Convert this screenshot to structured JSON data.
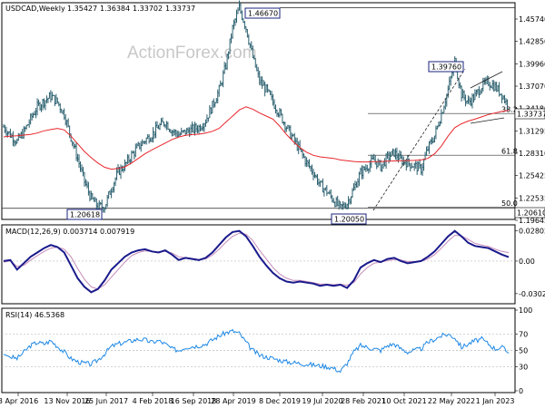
{
  "chart_data": [
    {
      "type": "candlestick",
      "header": {
        "symbol_label": "USDCAD,Weekly",
        "ohlc": [
          "1.35427",
          "1.36384",
          "1.33702",
          "1.33737"
        ]
      },
      "watermark": "ActionForex.com",
      "y_ticks": [
        "1.45740",
        "1.42850",
        "1.39960",
        "1.37070",
        "1.34180",
        "1.31295",
        "1.28310",
        "1.25425",
        "1.22535",
        "1.19645"
      ],
      "ylim": [
        1.193,
        1.472
      ],
      "current_price": "1.33737",
      "price_labels": [
        "1.46670",
        "1.39760",
        "1.20050",
        "1.20618",
        "1.20610"
      ],
      "fib_labels": [
        "38.2",
        "61.8",
        "50.0"
      ],
      "fib_levels": [
        1.3293,
        1.2752,
        1.2078
      ],
      "closes": [
        1.312,
        1.3018,
        1.293,
        1.3055,
        1.322,
        1.338,
        1.3455,
        1.352,
        1.344,
        1.3285,
        1.2985,
        1.2705,
        1.241,
        1.219,
        1.2082,
        1.2085,
        1.2325,
        1.2535,
        1.262,
        1.2752,
        1.286,
        1.2948,
        1.3018,
        1.312,
        1.3185,
        1.3068,
        1.302,
        1.3055,
        1.3085,
        1.3115,
        1.3205,
        1.3395,
        1.3595,
        1.392,
        1.4402,
        1.4667,
        1.4405,
        1.402,
        1.3715,
        1.36,
        1.344,
        1.3285,
        1.312,
        1.2965,
        1.281,
        1.2655,
        1.253,
        1.2362,
        1.2282,
        1.2168,
        1.2065,
        1.2128,
        1.2315,
        1.252,
        1.2608,
        1.269,
        1.2605,
        1.272,
        1.2785,
        1.269,
        1.2652,
        1.2615,
        1.257,
        1.284,
        1.3005,
        1.329,
        1.36,
        1.3976,
        1.354,
        1.3438,
        1.352,
        1.365,
        1.37,
        1.364,
        1.354,
        1.3374
      ],
      "ma_values": [
        1.299,
        1.3,
        1.3005,
        1.3013,
        1.3023,
        1.304,
        1.3068,
        1.3085,
        1.31,
        1.308,
        1.3,
        1.29,
        1.28,
        1.272,
        1.265,
        1.2595,
        1.257,
        1.258,
        1.26,
        1.265,
        1.271,
        1.277,
        1.282,
        1.2865,
        1.291,
        1.2955,
        1.2988,
        1.301,
        1.302,
        1.3025,
        1.304,
        1.3063,
        1.31,
        1.318,
        1.326,
        1.334,
        1.338,
        1.335,
        1.33,
        1.326,
        1.322,
        1.313,
        1.302,
        1.293,
        1.285,
        1.279,
        1.275,
        1.273,
        1.272,
        1.271,
        1.269,
        1.268,
        1.267,
        1.2665,
        1.2665,
        1.2668,
        1.267,
        1.2675,
        1.2678,
        1.268,
        1.2682,
        1.2685,
        1.269,
        1.271,
        1.277,
        1.287,
        1.3,
        1.311,
        1.316,
        1.3195,
        1.322,
        1.325,
        1.328,
        1.33,
        1.332,
        1.3335
      ],
      "x_tick_labels": [
        "3 Apr 2016",
        "13 Nov 2016",
        "25 Jun 2017",
        "4 Feb 2018",
        "16 Sep 2018",
        "28 Apr 2019",
        "8 Dec 2019",
        "19 Jul 2020",
        "28 Feb 2021",
        "10 Oct 2021",
        "22 May 2022",
        "1 Jan 2023"
      ]
    },
    {
      "type": "line",
      "title": "MACD(12,26,9) 0.003714 0.007919",
      "y_ticks": [
        "0.028028",
        "0.00",
        "-0.030286"
      ],
      "ylim": [
        -0.038,
        0.032
      ],
      "series": [
        {
          "name": "MACD",
          "values": [
            0.0,
            0.001,
            -0.008,
            -0.002,
            0.004,
            0.008,
            0.012,
            0.015,
            0.013,
            0.008,
            -0.004,
            -0.016,
            -0.024,
            -0.029,
            -0.026,
            -0.018,
            -0.008,
            -0.002,
            0.004,
            0.008,
            0.01,
            0.011,
            0.009,
            0.008,
            0.01,
            0.006,
            0.001,
            0.003,
            0.002,
            0.001,
            0.003,
            0.008,
            0.015,
            0.022,
            0.027,
            0.028,
            0.023,
            0.014,
            0.004,
            -0.004,
            -0.011,
            -0.016,
            -0.019,
            -0.02,
            -0.019,
            -0.02,
            -0.021,
            -0.023,
            -0.022,
            -0.023,
            -0.022,
            -0.025,
            -0.018,
            -0.006,
            -0.002,
            0.001,
            -0.001,
            0.002,
            0.003,
            0.0,
            -0.002,
            -0.001,
            0.0,
            0.004,
            0.009,
            0.016,
            0.023,
            0.028,
            0.023,
            0.017,
            0.014,
            0.013,
            0.012,
            0.009,
            0.006,
            0.0037
          ]
        },
        {
          "name": "Signal",
          "values": [
            -0.001,
            0.0,
            -0.005,
            -0.004,
            0.001,
            0.005,
            0.009,
            0.012,
            0.013,
            0.011,
            0.004,
            -0.007,
            -0.017,
            -0.024,
            -0.026,
            -0.022,
            -0.015,
            -0.008,
            -0.001,
            0.005,
            0.008,
            0.0095,
            0.009,
            0.0085,
            0.009,
            0.0075,
            0.004,
            0.003,
            0.0025,
            0.0015,
            0.002,
            0.0055,
            0.011,
            0.0175,
            0.023,
            0.026,
            0.025,
            0.019,
            0.01,
            0.002,
            -0.006,
            -0.012,
            -0.016,
            -0.018,
            -0.018,
            -0.019,
            -0.02,
            -0.0215,
            -0.0215,
            -0.022,
            -0.0215,
            -0.0225,
            -0.02,
            -0.012,
            -0.006,
            -0.002,
            -0.001,
            0.0005,
            0.0015,
            0.001,
            -0.0005,
            -0.0005,
            -0.0002,
            0.002,
            0.006,
            0.012,
            0.0185,
            0.024,
            0.0235,
            0.02,
            0.0165,
            0.015,
            0.0135,
            0.011,
            0.009,
            0.0079
          ]
        }
      ]
    },
    {
      "type": "line",
      "title": "RSI(14) 46.5368",
      "y_ticks": [
        "100",
        "70",
        "50",
        "30",
        "0"
      ],
      "ylim": [
        0,
        100
      ],
      "levels": [
        70,
        50,
        30
      ],
      "series": [
        {
          "name": "RSI",
          "values": [
            45,
            42,
            40,
            48,
            56,
            60,
            58,
            62,
            55,
            48,
            40,
            36,
            34,
            33,
            38,
            46,
            55,
            58,
            60,
            62,
            64,
            63,
            60,
            62,
            58,
            52,
            50,
            54,
            55,
            56,
            58,
            63,
            68,
            72,
            74,
            71,
            60,
            50,
            44,
            42,
            40,
            38,
            36,
            35,
            34,
            33,
            32,
            31,
            30,
            28,
            24,
            34,
            48,
            56,
            54,
            52,
            50,
            56,
            58,
            52,
            48,
            50,
            52,
            60,
            64,
            68,
            70,
            66,
            54,
            58,
            62,
            64,
            58,
            52,
            54,
            46.5
          ]
        }
      ]
    }
  ]
}
